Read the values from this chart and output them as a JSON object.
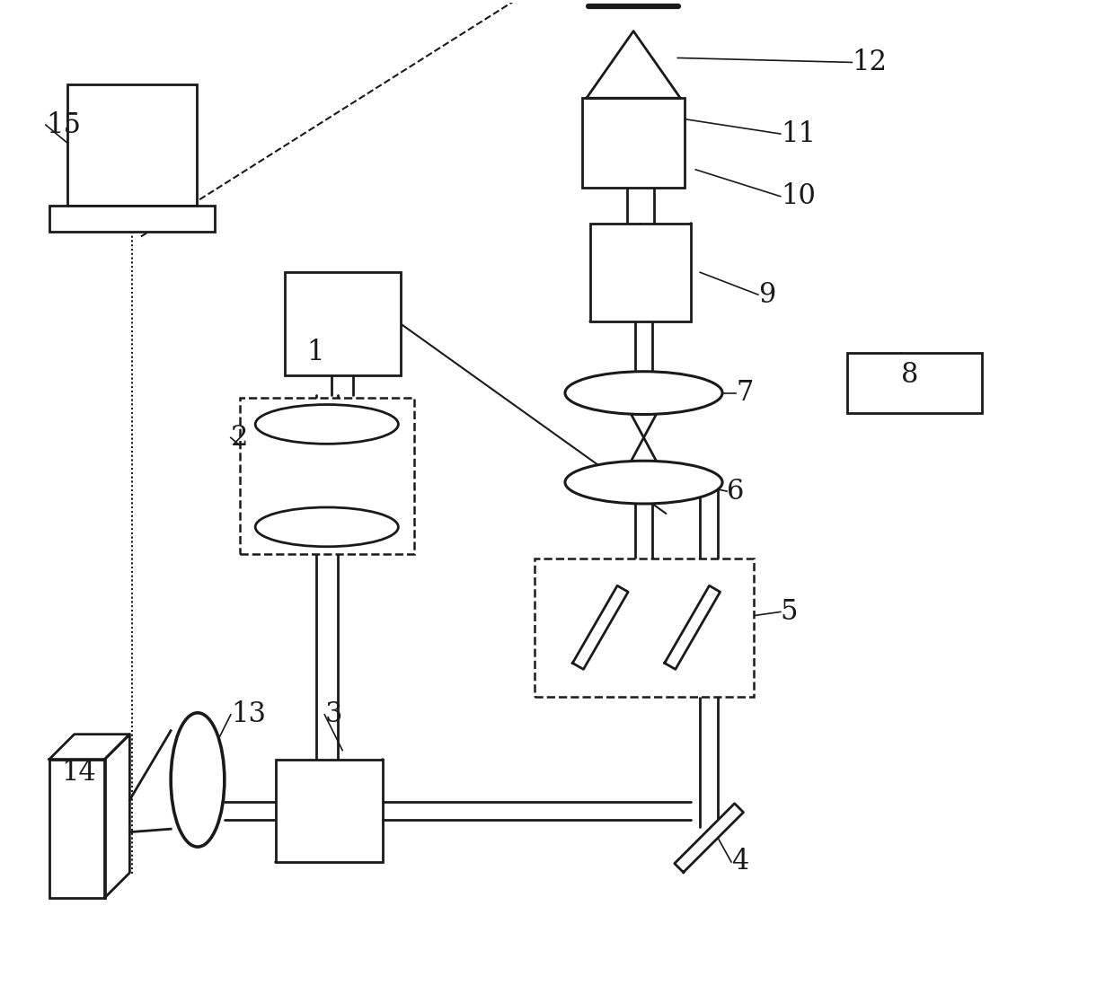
{
  "bg_color": "#ffffff",
  "lc": "#1a1a1a",
  "lw": 2.0,
  "fig_w": 12.4,
  "fig_h": 11.17
}
